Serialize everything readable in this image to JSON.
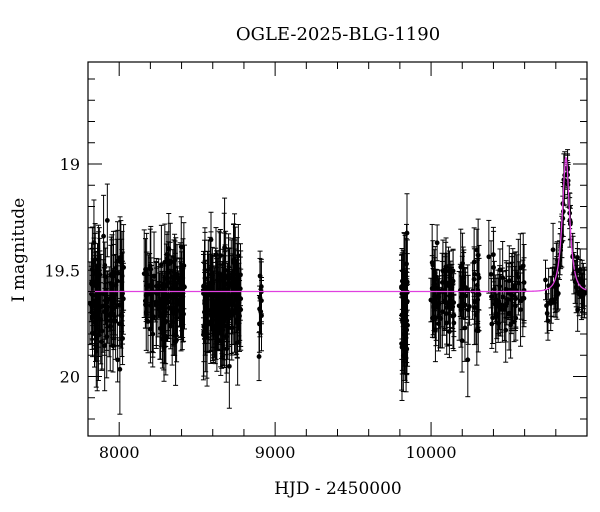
{
  "chart_data": {
    "type": "scatter",
    "title": "OGLE-2025-BLG-1190",
    "xlabel": "HJD - 2450000",
    "ylabel": "I magnitude",
    "xlim": [
      7800,
      11000
    ],
    "ylim": [
      20.28,
      18.52
    ],
    "y_inverted": true,
    "x_ticks": [
      8000,
      9000,
      10000
    ],
    "y_ticks": [
      19,
      19.5,
      20
    ],
    "x_tick_labels": [
      "8000",
      "9000",
      "10000"
    ],
    "y_tick_labels": [
      "19",
      "19.5",
      "20"
    ],
    "baseline_mag": 19.6,
    "colors": {
      "data": "#000000",
      "model": "#e040e0"
    },
    "seasons": [
      {
        "start": 7810,
        "end": 8030,
        "n": 110,
        "mean": 19.64,
        "scatter": 0.12,
        "err": 0.17
      },
      {
        "start": 8160,
        "end": 8420,
        "n": 120,
        "mean": 19.63,
        "scatter": 0.1,
        "err": 0.16
      },
      {
        "start": 8540,
        "end": 8780,
        "n": 160,
        "mean": 19.64,
        "scatter": 0.12,
        "err": 0.18
      },
      {
        "start": 8895,
        "end": 8915,
        "n": 10,
        "mean": 19.63,
        "scatter": 0.1,
        "err": 0.16
      },
      {
        "start": 9810,
        "end": 9850,
        "n": 40,
        "mean": 19.68,
        "scatter": 0.14,
        "err": 0.2
      },
      {
        "start": 9995,
        "end": 10150,
        "n": 60,
        "mean": 19.62,
        "scatter": 0.09,
        "err": 0.14
      },
      {
        "start": 10180,
        "end": 10310,
        "n": 40,
        "mean": 19.62,
        "scatter": 0.09,
        "err": 0.14
      },
      {
        "start": 10370,
        "end": 10600,
        "n": 60,
        "mean": 19.62,
        "scatter": 0.09,
        "err": 0.14
      },
      {
        "start": 10730,
        "end": 10990,
        "n": 70,
        "mean": 19.62,
        "scatter": 0.07,
        "err": 0.1
      }
    ],
    "peak": {
      "t0": 10865,
      "peak_mag": 18.97,
      "tE": 35
    }
  }
}
